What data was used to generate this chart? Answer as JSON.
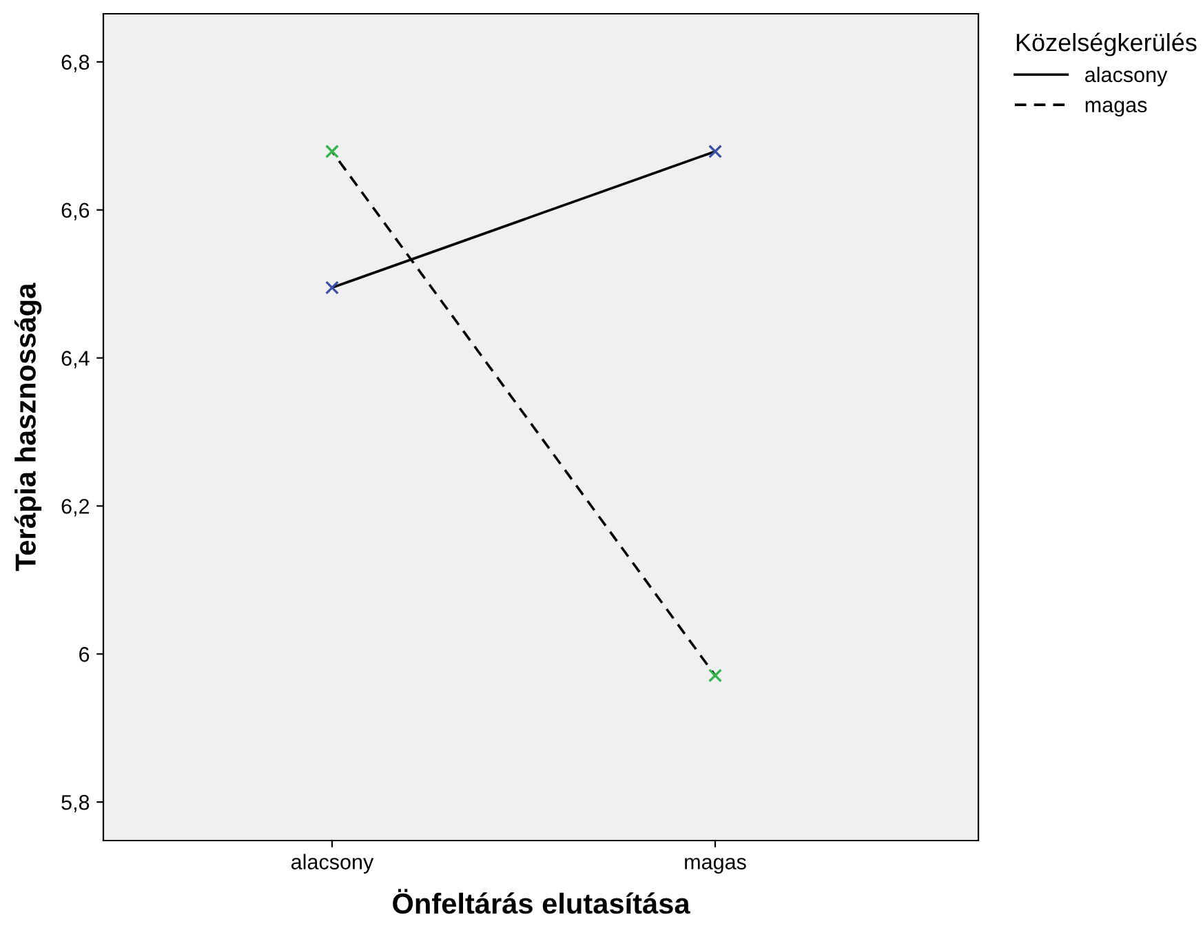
{
  "chart_data": {
    "type": "line",
    "xlabel": "Önfeltárás elutasítása",
    "ylabel": "Terápia hasznossága",
    "legend_title": "Közelségkerülés",
    "categories": [
      "alacsony",
      "magas"
    ],
    "series": [
      {
        "name": "alacsony",
        "color": "#3c4fa6",
        "values": [
          6.495,
          6.679
        ],
        "line_style": "solid"
      },
      {
        "name": "magas",
        "color": "#33b34a",
        "values": [
          6.679,
          5.971
        ],
        "line_style": "dashed"
      }
    ],
    "ylim": [
      5.748,
      6.865
    ],
    "yticks": [
      {
        "value": 5.8,
        "label": "5,8"
      },
      {
        "value": 6,
        "label": "6"
      },
      {
        "value": 6.2,
        "label": "6,2"
      },
      {
        "value": 6.4,
        "label": "6,4"
      },
      {
        "value": 6.6,
        "label": "6,6"
      },
      {
        "value": 6.8,
        "label": "6,8"
      }
    ],
    "marker": "cross",
    "legend": "top right",
    "grid": false
  }
}
